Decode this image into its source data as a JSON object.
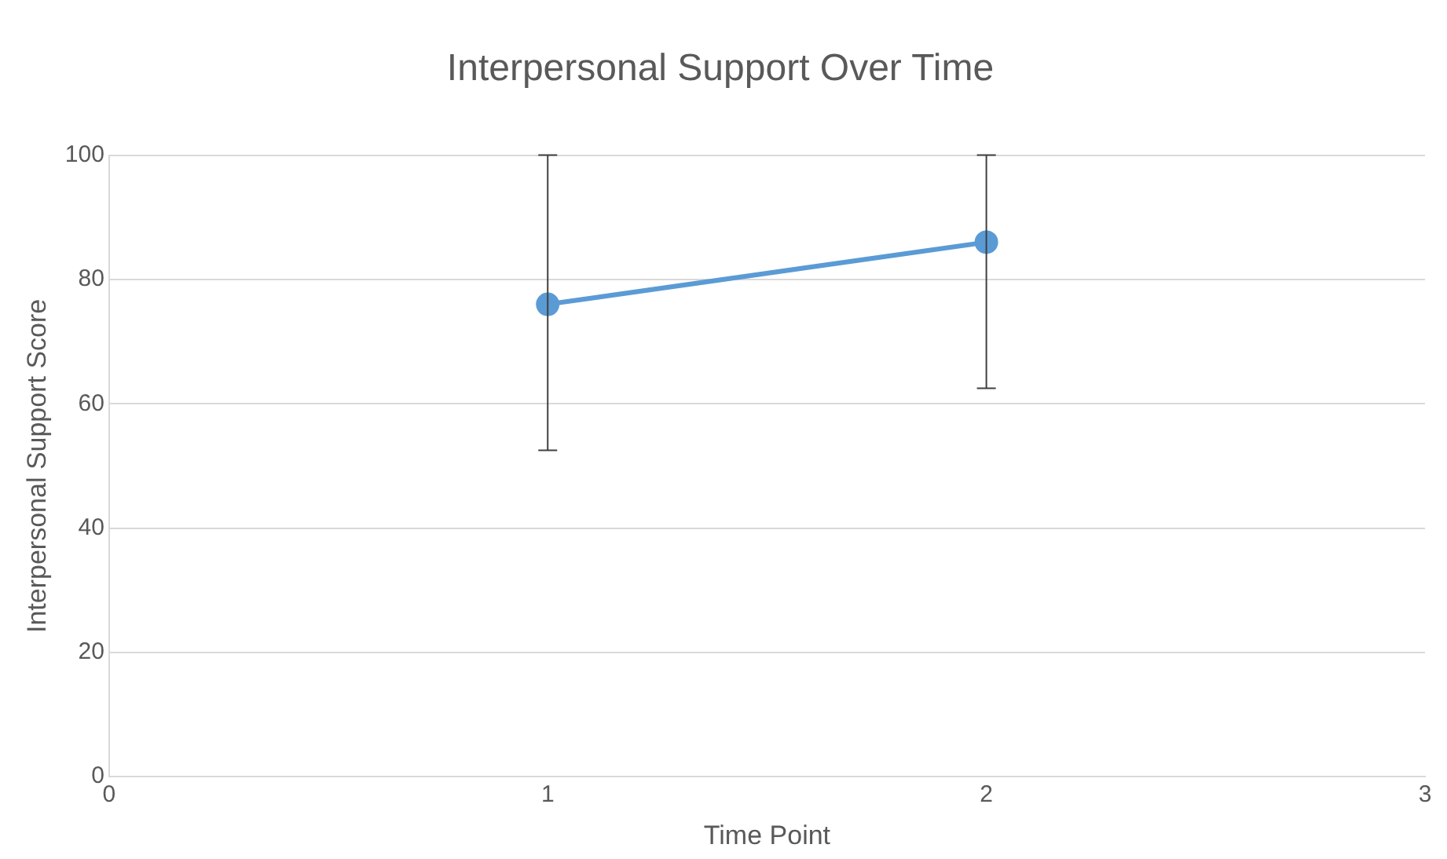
{
  "chart_data": {
    "type": "line",
    "title": "Interpersonal Support Over Time",
    "xlabel": "Time Point",
    "ylabel": "Interpersonal Support Score",
    "series": [
      {
        "color": "#5b9bd5",
        "x": [
          1,
          2
        ],
        "values": [
          76,
          86
        ],
        "errors": [
          [
            52.5,
            100
          ],
          [
            62.5,
            100
          ]
        ]
      }
    ],
    "xlim": [
      0,
      3
    ],
    "xticks": [
      0,
      1,
      2,
      3
    ],
    "ylim": [
      0,
      100
    ],
    "yticks": [
      0,
      20,
      40,
      60,
      80,
      100
    ],
    "grid": "y",
    "legend": false,
    "marker": "circle",
    "line_style": "solid"
  }
}
